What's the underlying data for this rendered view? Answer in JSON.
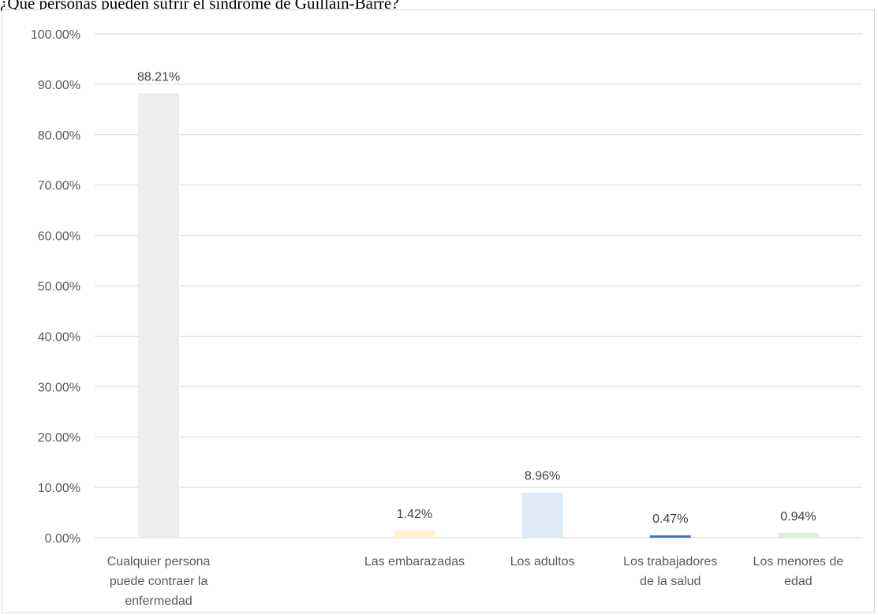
{
  "chart_data": {
    "type": "bar",
    "title": "¿Qué personas pueden sufrir el síndrome de Guillain-Barré?",
    "categories": [
      "Cualquier persona puede contraer la enfermedad",
      "",
      "Las embarazadas",
      "Los adultos",
      "Los trabajadores de la salud",
      "Los menores de edad"
    ],
    "category_lines": [
      [
        "Cualquier persona",
        "puede contraer la",
        "enfermedad"
      ],
      [],
      [
        "Las embarazadas"
      ],
      [
        "Los adultos"
      ],
      [
        "Los trabajadores",
        "de la salud"
      ],
      [
        "Los menores de",
        "edad"
      ]
    ],
    "values": [
      88.21,
      null,
      1.42,
      8.96,
      0.47,
      0.94
    ],
    "data_labels": [
      "88.21%",
      "",
      "1.42%",
      "8.96%",
      "0.47%",
      "0.94%"
    ],
    "colors": [
      "#ededed",
      "#ffffff",
      "#fff2cc",
      "#deebf7",
      "#4472c4",
      "#e2efda"
    ],
    "ylim": [
      0,
      100
    ],
    "yticks": [
      0,
      10,
      20,
      30,
      40,
      50,
      60,
      70,
      80,
      90,
      100
    ],
    "ytick_labels": [
      "0.00%",
      "10.00%",
      "20.00%",
      "30.00%",
      "40.00%",
      "50.00%",
      "60.00%",
      "70.00%",
      "80.00%",
      "90.00%",
      "100.00%"
    ],
    "grid": true,
    "xlabel": "",
    "ylabel": ""
  }
}
